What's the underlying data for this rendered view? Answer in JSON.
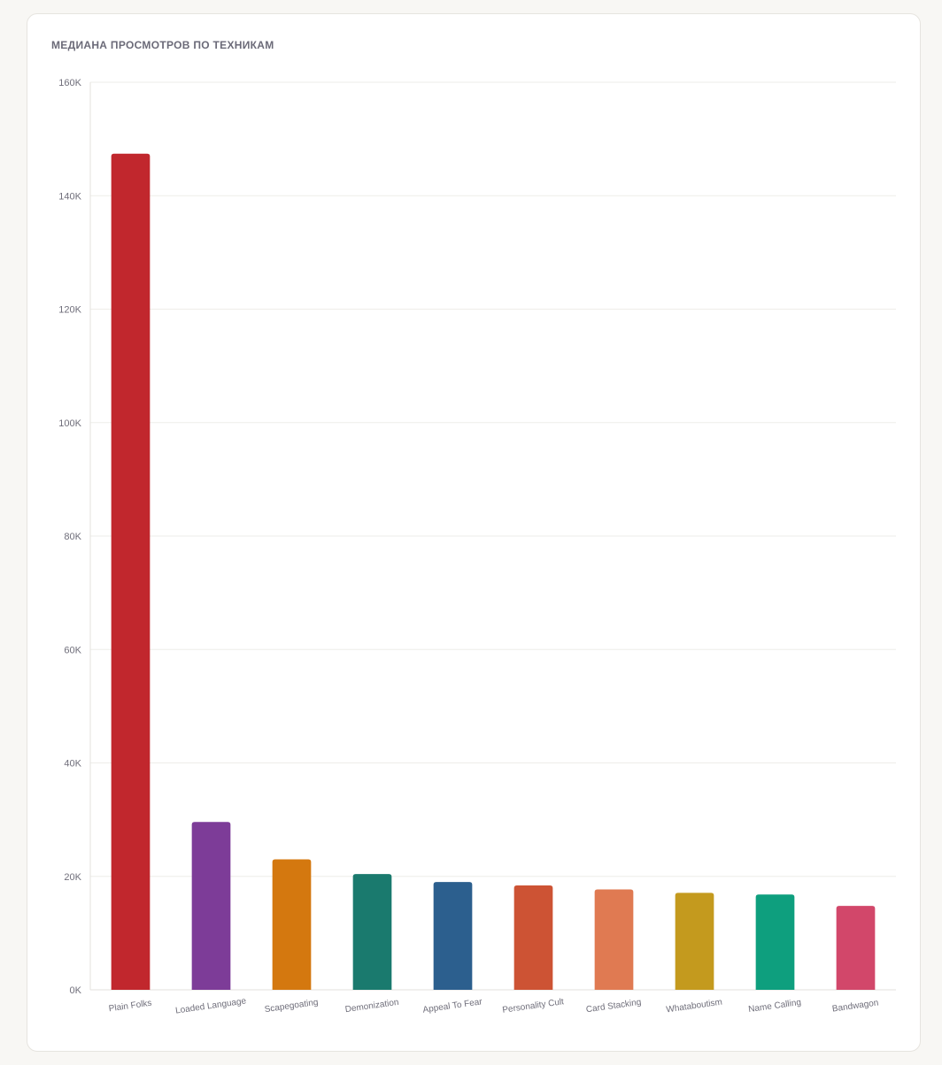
{
  "card": {
    "title": "МЕДИАНА ПРОСМОТРОВ ПО ТЕХНИКАМ"
  },
  "chart_data": {
    "type": "bar",
    "title": "МЕДИАНА ПРОСМОТРОВ ПО ТЕХНИКАМ",
    "xlabel": "",
    "ylabel": "",
    "ylim": [
      0,
      160000
    ],
    "y_ticks": [
      0,
      20000,
      40000,
      60000,
      80000,
      100000,
      120000,
      140000,
      160000
    ],
    "y_tick_labels": [
      "0K",
      "20K",
      "40K",
      "60K",
      "80K",
      "100K",
      "120K",
      "140K",
      "160K"
    ],
    "grid": true,
    "legend": "none",
    "categories": [
      "Plain Folks",
      "Loaded Language",
      "Scapegoating",
      "Demonization",
      "Appeal To Fear",
      "Personality Cult",
      "Card Stacking",
      "Whataboutism",
      "Name Calling",
      "Bandwagon"
    ],
    "values": [
      147400,
      29600,
      23000,
      20400,
      19000,
      18400,
      17700,
      17100,
      16800,
      14800
    ],
    "colors": [
      "#c1272d",
      "#7d3c98",
      "#d4780f",
      "#1a7a6e",
      "#2c5f8e",
      "#cd5334",
      "#e07a52",
      "#c49a1e",
      "#0e9f7e",
      "#d2476a"
    ]
  }
}
